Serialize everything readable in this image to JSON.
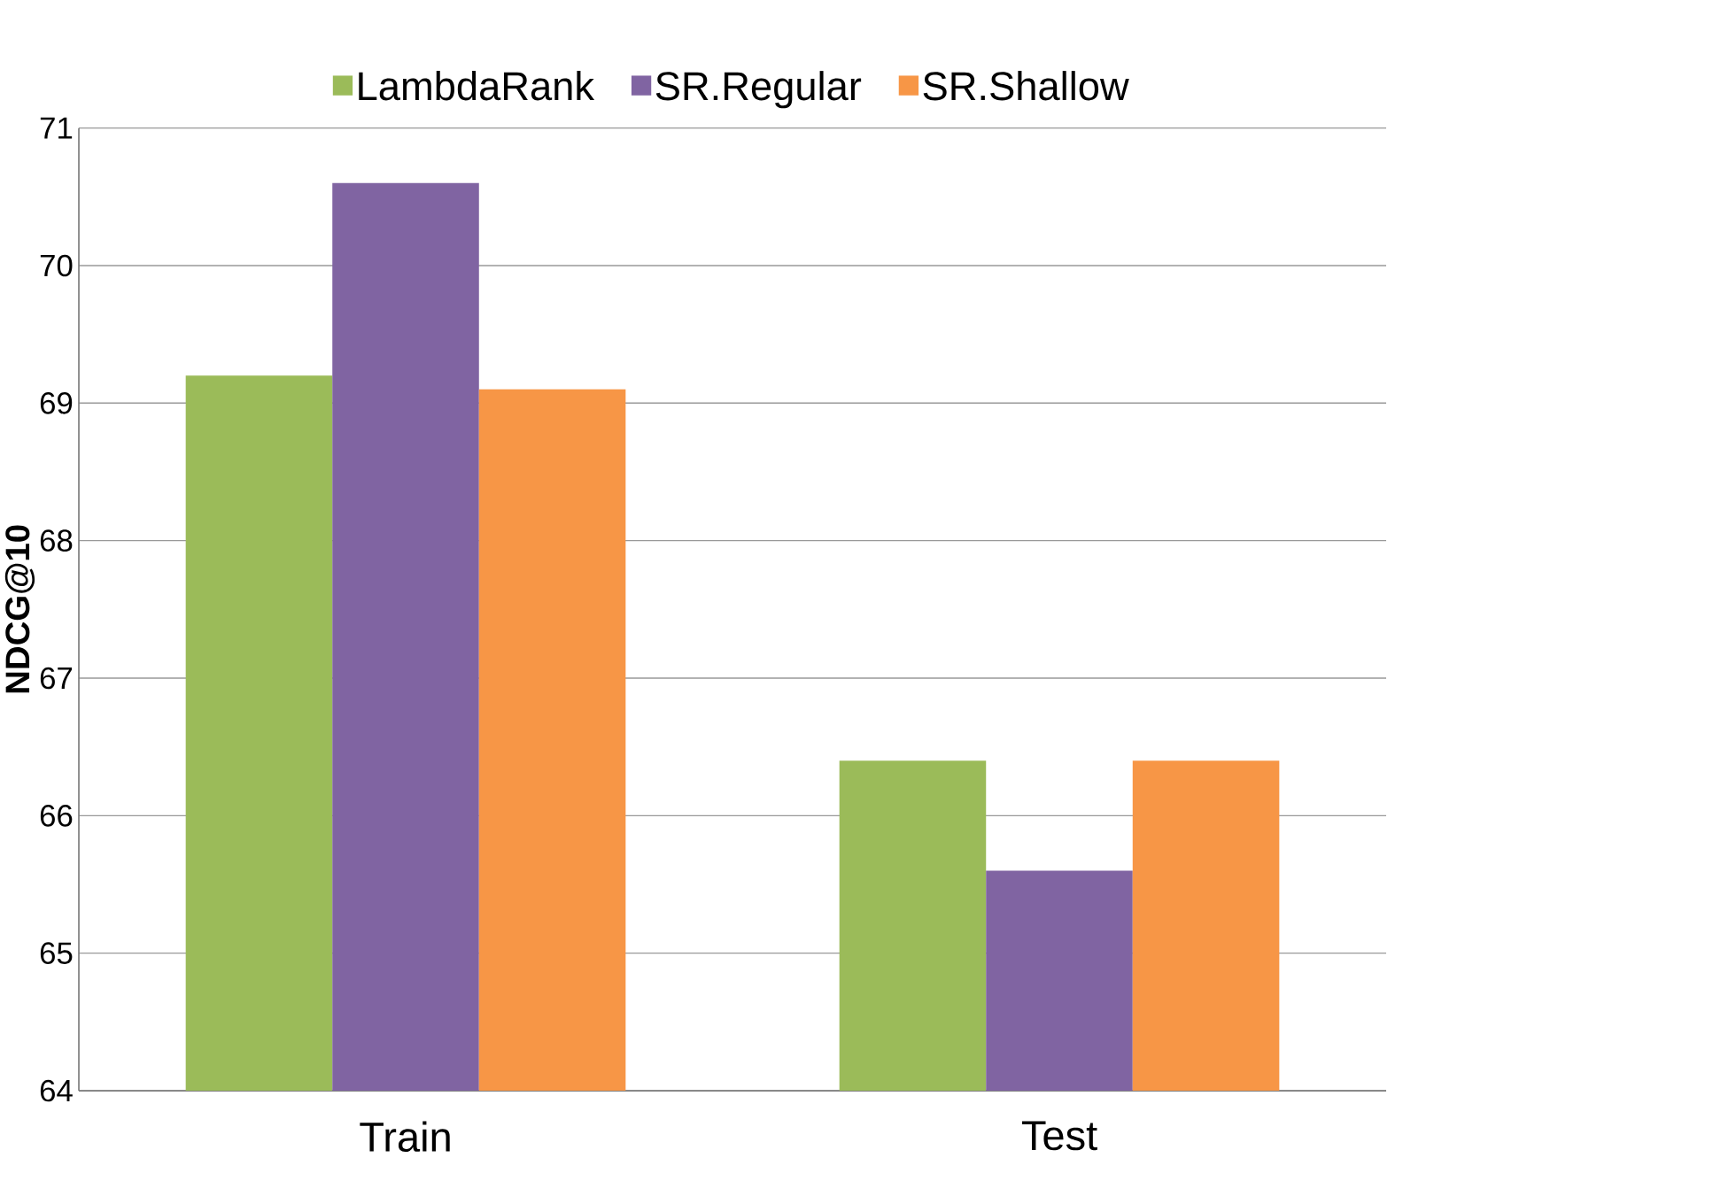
{
  "chart_data": {
    "type": "bar",
    "ylabel": "NDCG@10",
    "categories": [
      "Train",
      "Test"
    ],
    "series": [
      {
        "name": "LambdaRank",
        "color": "#9bbb59",
        "values": [
          69.2,
          66.4
        ]
      },
      {
        "name": "SR.Regular",
        "color": "#8064a2",
        "values": [
          70.6,
          65.6
        ]
      },
      {
        "name": "SR.Shallow",
        "color": "#f79646",
        "values": [
          69.1,
          66.4
        ]
      }
    ],
    "ylim": [
      64,
      71
    ],
    "yticks": [
      64,
      65,
      66,
      67,
      68,
      69,
      70,
      71
    ],
    "grid": "y",
    "legend": "top"
  }
}
